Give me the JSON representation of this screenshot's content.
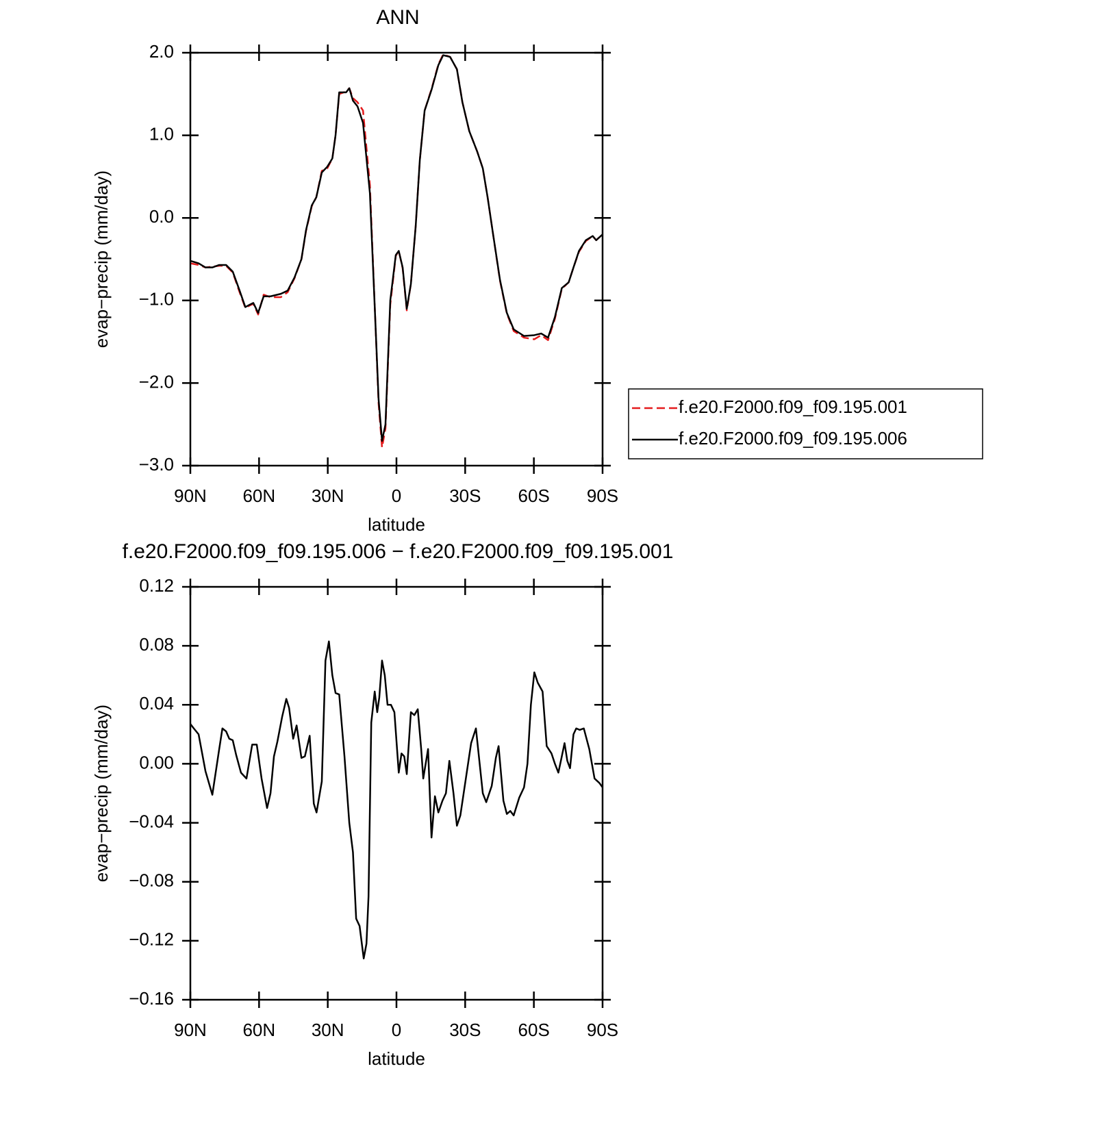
{
  "chart_data": [
    {
      "type": "line",
      "title": "ANN",
      "x_label": "latitude",
      "y_label": "evap−precip (mm/day)",
      "xlim": [
        90,
        -90
      ],
      "xticks": [
        {
          "value": 90,
          "label": "90N"
        },
        {
          "value": 60,
          "label": "60N"
        },
        {
          "value": 30,
          "label": "30N"
        },
        0,
        {
          "value": -30,
          "label": "30S"
        },
        {
          "value": -60,
          "label": "60S"
        },
        {
          "value": -90,
          "label": "90S"
        }
      ],
      "ylim": [
        -3,
        2
      ],
      "yticks": [
        {
          "value": 2,
          "label": "2.0"
        },
        {
          "value": 1,
          "label": "1.0"
        },
        {
          "value": 0,
          "label": "0.0"
        },
        {
          "value": -1,
          "label": "−1.0"
        },
        {
          "value": -2,
          "label": "−2.0"
        },
        {
          "value": -3,
          "label": "−3.0"
        }
      ],
      "legend": "outside-right",
      "x": [
        90,
        86.4,
        83.4,
        80.4,
        77.4,
        74.4,
        71.5,
        68.5,
        66,
        64,
        62.5,
        60.4,
        58,
        55,
        50.5,
        47.5,
        44.5,
        41.5,
        39.5,
        37,
        35,
        32.6,
        30.2,
        28,
        26.6,
        25,
        22,
        20.6,
        19,
        17,
        14.6,
        11.6,
        9.3,
        7.8,
        6.3,
        4.8,
        2.7,
        0.3,
        -1,
        -2.7,
        -4.5,
        -6.3,
        -8.4,
        -10.2,
        -12.3,
        -15.3,
        -18.3,
        -20.4,
        -23.4,
        -26.4,
        -28.8,
        -31.8,
        -35.3,
        -37.7,
        -39.8,
        -42.2,
        -45.2,
        -48.2,
        -51.2,
        -55.7,
        -60.2,
        -63.2,
        -66.2,
        -69.2,
        -72.2,
        -75.2,
        -77.3,
        -79.7,
        -82.7,
        -85.7,
        -87.2,
        -90
      ],
      "series": [
        {
          "name": "f.e20.F2000.f09_f09.195.001",
          "color": "#e41a1c",
          "dash": true,
          "values": [
            -0.55,
            -0.57,
            -0.6,
            -0.59,
            -0.58,
            -0.58,
            -0.66,
            -0.9,
            -1.09,
            -1.06,
            -1.04,
            -1.17,
            -0.93,
            -0.96,
            -0.96,
            -0.9,
            -0.73,
            -0.5,
            -0.16,
            0.14,
            0.25,
            0.57,
            0.6,
            0.72,
            1.0,
            1.5,
            1.53,
            1.57,
            1.45,
            1.4,
            1.3,
            0.4,
            -1.2,
            -2.25,
            -2.78,
            -2.55,
            -1.05,
            -0.46,
            -0.4,
            -0.61,
            -1.12,
            -0.8,
            -0.1,
            0.7,
            1.3,
            1.56,
            1.86,
            1.98,
            1.95,
            1.8,
            1.4,
            1.05,
            0.8,
            0.6,
            0.25,
            -0.2,
            -0.76,
            -1.16,
            -1.37,
            -1.45,
            -1.47,
            -1.42,
            -1.48,
            -1.22,
            -0.86,
            -0.78,
            -0.6,
            -0.41,
            -0.28,
            -0.22,
            -0.27,
            -0.2
          ]
        },
        {
          "name": "f.e20.F2000.f09_f09.195.006",
          "color": "#000000",
          "dash": false,
          "values": [
            -0.52,
            -0.55,
            -0.6,
            -0.6,
            -0.57,
            -0.57,
            -0.65,
            -0.88,
            -1.08,
            -1.05,
            -1.03,
            -1.15,
            -0.95,
            -0.95,
            -0.92,
            -0.88,
            -0.72,
            -0.5,
            -0.15,
            0.15,
            0.25,
            0.55,
            0.62,
            0.72,
            1.0,
            1.52,
            1.52,
            1.57,
            1.42,
            1.35,
            1.15,
            0.3,
            -1.2,
            -2.2,
            -2.7,
            -2.5,
            -1.0,
            -0.45,
            -0.4,
            -0.6,
            -1.1,
            -0.8,
            -0.1,
            0.7,
            1.3,
            1.55,
            1.85,
            1.97,
            1.95,
            1.8,
            1.4,
            1.05,
            0.8,
            0.6,
            0.25,
            -0.2,
            -0.75,
            -1.15,
            -1.35,
            -1.43,
            -1.42,
            -1.4,
            -1.45,
            -1.2,
            -0.85,
            -0.78,
            -0.6,
            -0.4,
            -0.27,
            -0.22,
            -0.27,
            -0.2
          ]
        }
      ]
    },
    {
      "type": "line",
      "title": "f.e20.F2000.f09_f09.195.006 − f.e20.F2000.f09_f09.195.001",
      "x_label": "latitude",
      "y_label": "evap−precip (mm/day)",
      "xlim": [
        90,
        -90
      ],
      "xticks": [
        {
          "value": 90,
          "label": "90N"
        },
        {
          "value": 60,
          "label": "60N"
        },
        {
          "value": 30,
          "label": "30N"
        },
        0,
        {
          "value": -30,
          "label": "30S"
        },
        {
          "value": -60,
          "label": "60S"
        },
        {
          "value": -90,
          "label": "90S"
        }
      ],
      "ylim": [
        -0.16,
        0.12
      ],
      "yticks": [
        0.12,
        0.08,
        0.04,
        {
          "value": 0,
          "label": "0.00"
        },
        {
          "value": -0.04,
          "label": "−0.04"
        },
        {
          "value": -0.08,
          "label": "−0.08"
        },
        {
          "value": -0.12,
          "label": "−0.12"
        },
        {
          "value": -0.16,
          "label": "−0.16"
        }
      ],
      "x": [
        90,
        88.5,
        86.4,
        83.4,
        80.4,
        77.4,
        76,
        74.4,
        73,
        71.5,
        70,
        67.9,
        65.5,
        63,
        61,
        58.9,
        56.5,
        55,
        53.5,
        52,
        49.9,
        48.1,
        46.9,
        45.1,
        43.6,
        41.5,
        40,
        37.9,
        36.1,
        34.9,
        32.6,
        31,
        29.5,
        28,
        26.6,
        25,
        22.7,
        20.6,
        19,
        17.6,
        16.1,
        14.3,
        13.1,
        12.2,
        11,
        9.5,
        8.4,
        7.5,
        6.3,
        5.1,
        3.9,
        2.4,
        0.9,
        -1,
        -2.2,
        -3.4,
        -4.5,
        -6.3,
        -7.8,
        -9.3,
        -10.8,
        -11.7,
        -13.8,
        -15.3,
        -16.8,
        -18.3,
        -20.1,
        -21.6,
        -23.1,
        -24.9,
        -26.4,
        -27.9,
        -30.3,
        -32.6,
        -34.7,
        -36.2,
        -37.7,
        -39.2,
        -41.6,
        -43.4,
        -44.6,
        -46.7,
        -48.2,
        -49.7,
        -51.2,
        -53.6,
        -55.7,
        -57.2,
        -58.7,
        -60.2,
        -61.7,
        -63.8,
        -65.6,
        -67.7,
        -69.2,
        -70.7,
        -72.2,
        -73.4,
        -74.6,
        -75.8,
        -77.3,
        -78.5,
        -80,
        -81.8,
        -84.2,
        -86.5,
        -88.6,
        -90
      ],
      "series": [
        {
          "name": "f.e20.F2000.f09_f09.195.006 − f.e20.F2000.f09_f09.195.001",
          "color": "#000000",
          "dash": false,
          "values": [
            0.027,
            0.024,
            0.02,
            -0.005,
            -0.021,
            0.01,
            0.024,
            0.022,
            0.017,
            0.016,
            0.006,
            -0.006,
            -0.01,
            0.013,
            0.013,
            -0.01,
            -0.03,
            -0.02,
            0.005,
            0.015,
            0.032,
            0.044,
            0.038,
            0.017,
            0.026,
            0.004,
            0.005,
            0.019,
            -0.027,
            -0.033,
            -0.012,
            0.07,
            0.083,
            0.06,
            0.048,
            0.047,
            0.005,
            -0.04,
            -0.06,
            -0.105,
            -0.11,
            -0.132,
            -0.122,
            -0.09,
            0.028,
            0.049,
            0.035,
            0.045,
            0.07,
            0.06,
            0.04,
            0.04,
            0.035,
            -0.006,
            0.007,
            0.005,
            -0.007,
            0.035,
            0.033,
            0.037,
            0.01,
            -0.01,
            0.01,
            -0.05,
            -0.022,
            -0.033,
            -0.025,
            -0.02,
            0.002,
            -0.02,
            -0.042,
            -0.035,
            -0.01,
            0.014,
            0.024,
            0.002,
            -0.02,
            -0.026,
            -0.015,
            0.004,
            0.012,
            -0.025,
            -0.034,
            -0.032,
            -0.035,
            -0.023,
            -0.016,
            0.0,
            0.04,
            0.062,
            0.055,
            0.049,
            0.012,
            0.007,
            0.0,
            -0.006,
            0.005,
            0.014,
            0.002,
            -0.003,
            0.02,
            0.024,
            0.023,
            0.024,
            0.01,
            -0.01,
            -0.013,
            -0.016
          ]
        }
      ]
    }
  ]
}
